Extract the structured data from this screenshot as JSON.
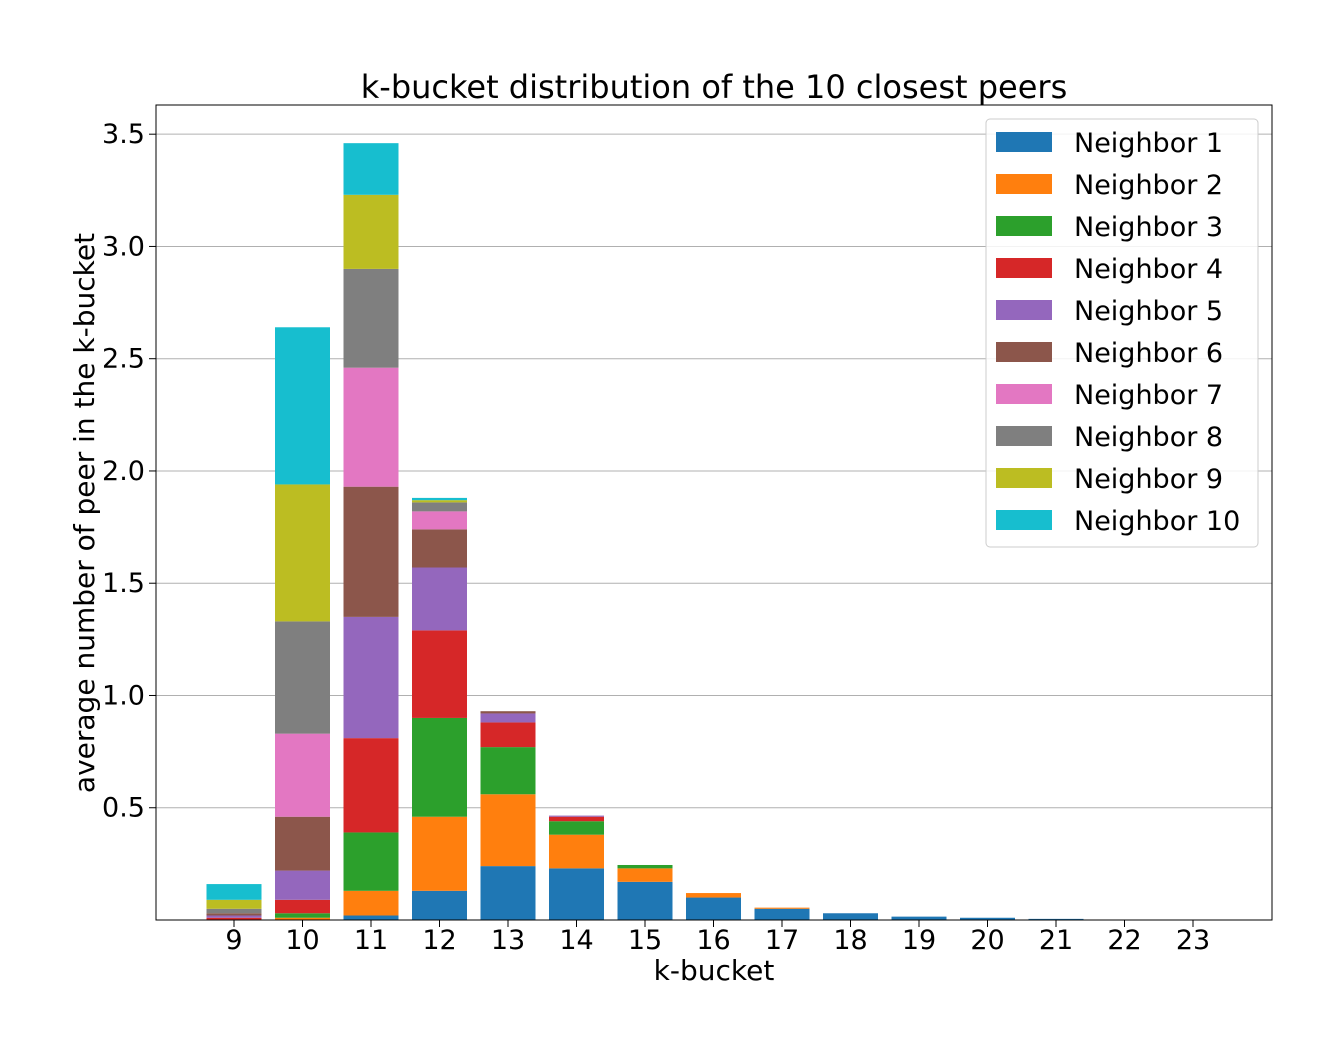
{
  "chart_data": {
    "type": "bar",
    "stacked": true,
    "title": "k-bucket distribution of the 10 closest peers",
    "xlabel": "k-bucket",
    "ylabel": "average number of peer in the k-bucket",
    "categories": [
      "9",
      "10",
      "11",
      "12",
      "13",
      "14",
      "15",
      "16",
      "17",
      "18",
      "19",
      "20",
      "21",
      "22",
      "23"
    ],
    "ylim": [
      0,
      3.63
    ],
    "yticks": [
      "0.5",
      "1.0",
      "1.5",
      "2.0",
      "2.5",
      "3.0",
      "3.5"
    ],
    "grid": "y",
    "legend_position": "top-right",
    "series": [
      {
        "name": "Neighbor 1",
        "color": "#1f77b4",
        "values": [
          0.0,
          0.0,
          0.02,
          0.13,
          0.24,
          0.23,
          0.17,
          0.1,
          0.05,
          0.03,
          0.015,
          0.01,
          0.005,
          0.002,
          0.001
        ]
      },
      {
        "name": "Neighbor 2",
        "color": "#ff7f0e",
        "values": [
          0.0,
          0.01,
          0.11,
          0.33,
          0.32,
          0.15,
          0.06,
          0.02,
          0.005,
          0.0,
          0.0,
          0.0,
          0.0,
          0.0,
          0.0
        ]
      },
      {
        "name": "Neighbor 3",
        "color": "#2ca02c",
        "values": [
          0.0,
          0.02,
          0.26,
          0.44,
          0.21,
          0.06,
          0.015,
          0.0,
          0.0,
          0.0,
          0.0,
          0.0,
          0.0,
          0.0,
          0.0
        ]
      },
      {
        "name": "Neighbor 4",
        "color": "#d62728",
        "values": [
          0.01,
          0.06,
          0.42,
          0.39,
          0.11,
          0.02,
          0.0,
          0.0,
          0.0,
          0.0,
          0.0,
          0.0,
          0.0,
          0.0,
          0.0
        ]
      },
      {
        "name": "Neighbor 5",
        "color": "#9467bd",
        "values": [
          0.01,
          0.13,
          0.54,
          0.28,
          0.04,
          0.005,
          0.0,
          0.0,
          0.0,
          0.0,
          0.0,
          0.0,
          0.0,
          0.0,
          0.0
        ]
      },
      {
        "name": "Neighbor 6",
        "color": "#8c564b",
        "values": [
          0.01,
          0.24,
          0.58,
          0.17,
          0.01,
          0.0,
          0.0,
          0.0,
          0.0,
          0.0,
          0.0,
          0.0,
          0.0,
          0.0,
          0.0
        ]
      },
      {
        "name": "Neighbor 7",
        "color": "#e377c2",
        "values": [
          0.0,
          0.37,
          0.53,
          0.08,
          0.0,
          0.0,
          0.0,
          0.0,
          0.0,
          0.0,
          0.0,
          0.0,
          0.0,
          0.0,
          0.0
        ]
      },
      {
        "name": "Neighbor 8",
        "color": "#7f7f7f",
        "values": [
          0.02,
          0.5,
          0.44,
          0.04,
          0.0,
          0.0,
          0.0,
          0.0,
          0.0,
          0.0,
          0.0,
          0.0,
          0.0,
          0.0,
          0.0
        ]
      },
      {
        "name": "Neighbor 9",
        "color": "#bcbd22",
        "values": [
          0.04,
          0.61,
          0.33,
          0.01,
          0.0,
          0.0,
          0.0,
          0.0,
          0.0,
          0.0,
          0.0,
          0.0,
          0.0,
          0.0,
          0.0
        ]
      },
      {
        "name": "Neighbor 10",
        "color": "#17becf",
        "values": [
          0.07,
          0.7,
          0.23,
          0.01,
          0.0,
          0.0,
          0.0,
          0.0,
          0.0,
          0.0,
          0.0,
          0.0,
          0.0,
          0.0,
          0.0
        ]
      }
    ]
  }
}
